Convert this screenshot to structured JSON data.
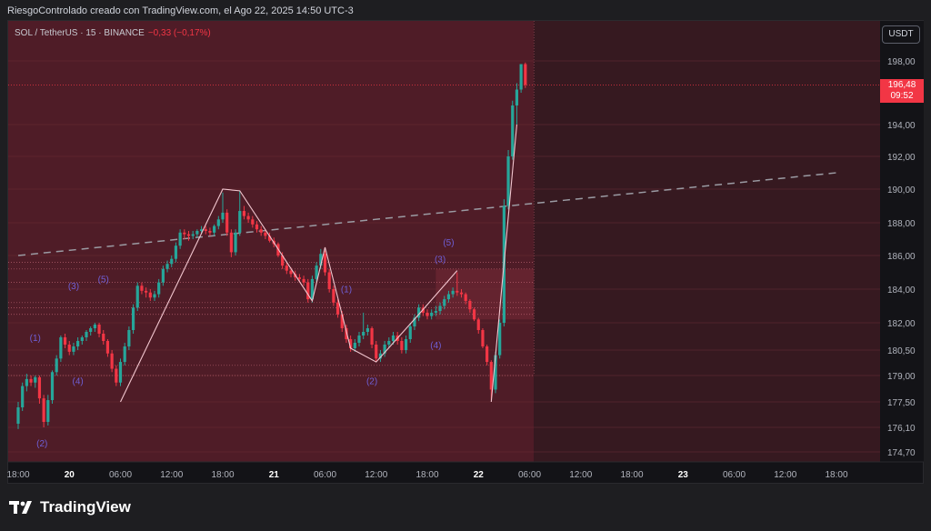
{
  "header": {
    "attribution": "RiesgoControlado creado con TradingView.com, el Ago 22, 2025 14:50 UTC-3"
  },
  "ticker": {
    "symbol_line": "SOL / TetherUS · 15 · BINANCE",
    "change": "−0,33 (−0,17%)"
  },
  "currency_button": "USDT",
  "last_price": {
    "value": "196,48",
    "countdown": "09:52"
  },
  "brand": {
    "name": "TradingView"
  },
  "colors": {
    "up": "#26a69a",
    "down": "#f23645",
    "zone": "#5a1f2a",
    "wave_line": "#f2c6cf",
    "wave_label": "#6f5fd6",
    "trend_dash": "#9b9ba3"
  },
  "chart_data": {
    "type": "candlestick",
    "interval": "15",
    "y_ticks": [
      "198,00",
      "194,00",
      "192,00",
      "190,00",
      "188,00",
      "186,00",
      "184,00",
      "182,00",
      "180,50",
      "179,00",
      "177,50",
      "176,10",
      "174,70"
    ],
    "y_tick_values": [
      198.0,
      194.0,
      192.0,
      190.0,
      188.0,
      186.0,
      184.0,
      182.0,
      180.5,
      179.0,
      177.5,
      176.1,
      174.7
    ],
    "x_ticks": [
      "18:00",
      "20",
      "06:00",
      "12:00",
      "18:00",
      "21",
      "06:00",
      "12:00",
      "18:00",
      "22",
      "06:00",
      "12:00",
      "18:00",
      "23",
      "06:00",
      "12:00",
      "18:00"
    ],
    "x_tick_hours": [
      0,
      6,
      12,
      18,
      24,
      30,
      36,
      42,
      48,
      54,
      60,
      66,
      72,
      78,
      84,
      90,
      96
    ],
    "bold_x_ticks": [
      "20",
      "21",
      "22",
      "23"
    ],
    "price_path": [
      [
        0,
        176.3
      ],
      [
        1,
        178.8
      ],
      [
        2,
        178.9
      ],
      [
        3,
        176.4
      ],
      [
        4,
        179.2
      ],
      [
        5,
        181.2
      ],
      [
        6,
        180.4
      ],
      [
        7,
        181.0
      ],
      [
        9,
        181.9
      ],
      [
        10,
        181.0
      ],
      [
        11.5,
        178.6
      ],
      [
        13,
        181.6
      ],
      [
        14,
        184.2
      ],
      [
        16,
        183.7
      ],
      [
        17,
        185.2
      ],
      [
        18,
        185.8
      ],
      [
        19,
        187.4
      ],
      [
        20,
        187.2
      ],
      [
        22,
        187.6
      ],
      [
        23,
        187.4
      ],
      [
        24,
        188.6
      ],
      [
        25,
        186.2
      ],
      [
        26,
        188.7
      ],
      [
        27,
        188.2
      ],
      [
        28,
        187.6
      ],
      [
        29,
        187.2
      ],
      [
        30,
        186.7
      ],
      [
        31,
        185.4
      ],
      [
        33,
        184.6
      ],
      [
        34,
        184.3
      ],
      [
        34.5,
        183.3
      ],
      [
        36,
        186.1
      ],
      [
        37,
        183.2
      ],
      [
        38,
        181.7
      ],
      [
        39,
        180.6
      ],
      [
        40,
        181.3
      ],
      [
        41,
        181.7
      ],
      [
        42,
        180.0
      ],
      [
        43,
        180.8
      ],
      [
        44,
        181.3
      ],
      [
        45,
        180.5
      ],
      [
        46,
        181.8
      ],
      [
        47,
        182.9
      ],
      [
        48,
        182.4
      ],
      [
        49,
        182.7
      ],
      [
        50,
        183.4
      ],
      [
        51,
        183.9
      ],
      [
        52,
        183.7
      ],
      [
        53,
        182.8
      ],
      [
        54,
        181.6
      ],
      [
        55,
        179.8
      ],
      [
        55.5,
        178.2
      ],
      [
        56,
        180.2
      ],
      [
        56.5,
        182.0
      ],
      [
        57,
        189.0
      ],
      [
        57.5,
        192.0
      ],
      [
        58,
        195.2
      ],
      [
        58.5,
        196.2
      ],
      [
        59,
        197.8
      ],
      [
        59.5,
        196.5
      ]
    ],
    "candles": [
      {
        "t": 0.0,
        "o": 176.3,
        "h": 177.5,
        "l": 176.0,
        "c": 177.2
      },
      {
        "t": 0.5,
        "o": 177.2,
        "h": 178.6,
        "l": 177.0,
        "c": 178.4
      },
      {
        "t": 1.0,
        "o": 178.4,
        "h": 179.1,
        "l": 178.1,
        "c": 178.8
      },
      {
        "t": 1.5,
        "o": 178.8,
        "h": 179.0,
        "l": 178.4,
        "c": 178.6
      },
      {
        "t": 2.0,
        "o": 178.6,
        "h": 179.0,
        "l": 178.3,
        "c": 178.9
      },
      {
        "t": 2.5,
        "o": 178.9,
        "h": 179.0,
        "l": 177.4,
        "c": 177.7
      },
      {
        "t": 3.0,
        "o": 177.7,
        "h": 177.9,
        "l": 176.1,
        "c": 176.4
      },
      {
        "t": 3.5,
        "o": 176.4,
        "h": 177.9,
        "l": 176.2,
        "c": 177.6
      },
      {
        "t": 4.0,
        "o": 177.6,
        "h": 179.3,
        "l": 177.4,
        "c": 179.2
      },
      {
        "t": 4.5,
        "o": 179.2,
        "h": 180.2,
        "l": 179.0,
        "c": 180.0
      },
      {
        "t": 5.0,
        "o": 180.0,
        "h": 181.3,
        "l": 179.8,
        "c": 181.2
      },
      {
        "t": 5.5,
        "o": 181.2,
        "h": 181.4,
        "l": 180.6,
        "c": 180.8
      },
      {
        "t": 6.0,
        "o": 180.8,
        "h": 181.0,
        "l": 180.2,
        "c": 180.4
      },
      {
        "t": 6.5,
        "o": 180.4,
        "h": 180.9,
        "l": 180.2,
        "c": 180.7
      },
      {
        "t": 7.0,
        "o": 180.7,
        "h": 181.2,
        "l": 180.5,
        "c": 181.0
      },
      {
        "t": 7.5,
        "o": 181.0,
        "h": 181.3,
        "l": 180.8,
        "c": 181.2
      },
      {
        "t": 8.0,
        "o": 181.2,
        "h": 181.6,
        "l": 181.0,
        "c": 181.5
      },
      {
        "t": 8.5,
        "o": 181.5,
        "h": 181.8,
        "l": 181.3,
        "c": 181.7
      },
      {
        "t": 9.0,
        "o": 181.7,
        "h": 182.0,
        "l": 181.5,
        "c": 181.9
      },
      {
        "t": 9.5,
        "o": 181.9,
        "h": 182.0,
        "l": 181.2,
        "c": 181.4
      },
      {
        "t": 10.0,
        "o": 181.4,
        "h": 181.6,
        "l": 180.8,
        "c": 181.0
      },
      {
        "t": 10.5,
        "o": 181.0,
        "h": 181.1,
        "l": 180.1,
        "c": 180.3
      },
      {
        "t": 11.0,
        "o": 180.3,
        "h": 180.5,
        "l": 179.2,
        "c": 179.4
      },
      {
        "t": 11.5,
        "o": 179.4,
        "h": 179.6,
        "l": 178.4,
        "c": 178.6
      },
      {
        "t": 12.0,
        "o": 178.6,
        "h": 180.0,
        "l": 178.4,
        "c": 179.8
      },
      {
        "t": 12.5,
        "o": 179.8,
        "h": 180.9,
        "l": 179.6,
        "c": 180.7
      },
      {
        "t": 13.0,
        "o": 180.7,
        "h": 181.8,
        "l": 180.5,
        "c": 181.6
      },
      {
        "t": 13.5,
        "o": 181.6,
        "h": 183.1,
        "l": 181.4,
        "c": 182.9
      },
      {
        "t": 14.0,
        "o": 182.9,
        "h": 184.4,
        "l": 182.7,
        "c": 184.2
      },
      {
        "t": 14.5,
        "o": 184.2,
        "h": 184.4,
        "l": 183.7,
        "c": 183.9
      },
      {
        "t": 15.0,
        "o": 183.9,
        "h": 184.1,
        "l": 183.5,
        "c": 183.8
      },
      {
        "t": 15.5,
        "o": 183.8,
        "h": 184.0,
        "l": 183.3,
        "c": 183.5
      },
      {
        "t": 16.0,
        "o": 183.5,
        "h": 183.9,
        "l": 183.3,
        "c": 183.7
      },
      {
        "t": 16.5,
        "o": 183.7,
        "h": 184.6,
        "l": 183.5,
        "c": 184.4
      },
      {
        "t": 17.0,
        "o": 184.4,
        "h": 185.4,
        "l": 184.2,
        "c": 185.2
      },
      {
        "t": 17.5,
        "o": 185.2,
        "h": 185.7,
        "l": 185.0,
        "c": 185.5
      },
      {
        "t": 18.0,
        "o": 185.5,
        "h": 186.0,
        "l": 185.3,
        "c": 185.8
      },
      {
        "t": 18.5,
        "o": 185.8,
        "h": 186.8,
        "l": 185.6,
        "c": 186.6
      },
      {
        "t": 19.0,
        "o": 186.6,
        "h": 187.6,
        "l": 186.4,
        "c": 187.4
      },
      {
        "t": 19.5,
        "o": 187.4,
        "h": 187.6,
        "l": 187.0,
        "c": 187.3
      },
      {
        "t": 20.0,
        "o": 187.3,
        "h": 187.5,
        "l": 186.9,
        "c": 187.2
      },
      {
        "t": 20.5,
        "o": 187.2,
        "h": 187.5,
        "l": 187.0,
        "c": 187.3
      },
      {
        "t": 21.0,
        "o": 187.3,
        "h": 187.6,
        "l": 187.1,
        "c": 187.5
      },
      {
        "t": 21.5,
        "o": 187.5,
        "h": 187.8,
        "l": 187.3,
        "c": 187.6
      },
      {
        "t": 22.0,
        "o": 187.6,
        "h": 187.8,
        "l": 187.3,
        "c": 187.5
      },
      {
        "t": 22.5,
        "o": 187.5,
        "h": 187.7,
        "l": 187.2,
        "c": 187.4
      },
      {
        "t": 23.0,
        "o": 187.4,
        "h": 187.9,
        "l": 187.2,
        "c": 187.8
      },
      {
        "t": 23.5,
        "o": 187.8,
        "h": 188.4,
        "l": 187.6,
        "c": 188.2
      },
      {
        "t": 24.0,
        "o": 188.2,
        "h": 189.8,
        "l": 188.0,
        "c": 188.6
      },
      {
        "t": 24.5,
        "o": 188.6,
        "h": 188.8,
        "l": 187.2,
        "c": 187.4
      },
      {
        "t": 25.0,
        "o": 187.4,
        "h": 187.6,
        "l": 185.9,
        "c": 186.2
      },
      {
        "t": 25.5,
        "o": 186.2,
        "h": 187.6,
        "l": 186.0,
        "c": 187.4
      },
      {
        "t": 26.0,
        "o": 187.4,
        "h": 189.9,
        "l": 187.2,
        "c": 188.7
      },
      {
        "t": 26.5,
        "o": 188.7,
        "h": 189.0,
        "l": 188.2,
        "c": 188.4
      },
      {
        "t": 27.0,
        "o": 188.4,
        "h": 188.6,
        "l": 188.0,
        "c": 188.2
      },
      {
        "t": 27.5,
        "o": 188.2,
        "h": 188.4,
        "l": 187.7,
        "c": 187.9
      },
      {
        "t": 28.0,
        "o": 187.9,
        "h": 188.1,
        "l": 187.4,
        "c": 187.6
      },
      {
        "t": 28.5,
        "o": 187.6,
        "h": 187.8,
        "l": 187.2,
        "c": 187.4
      },
      {
        "t": 29.0,
        "o": 187.4,
        "h": 187.6,
        "l": 187.0,
        "c": 187.2
      },
      {
        "t": 29.5,
        "o": 187.2,
        "h": 187.4,
        "l": 186.8,
        "c": 186.9
      },
      {
        "t": 30.0,
        "o": 186.9,
        "h": 187.1,
        "l": 186.5,
        "c": 186.7
      },
      {
        "t": 30.5,
        "o": 186.7,
        "h": 186.8,
        "l": 185.9,
        "c": 186.0
      },
      {
        "t": 31.0,
        "o": 186.0,
        "h": 186.2,
        "l": 185.2,
        "c": 185.4
      },
      {
        "t": 31.5,
        "o": 185.4,
        "h": 185.6,
        "l": 184.9,
        "c": 185.1
      },
      {
        "t": 32.0,
        "o": 185.1,
        "h": 185.3,
        "l": 184.7,
        "c": 184.9
      },
      {
        "t": 32.5,
        "o": 184.9,
        "h": 185.1,
        "l": 184.5,
        "c": 184.7
      },
      {
        "t": 33.0,
        "o": 184.7,
        "h": 184.9,
        "l": 184.4,
        "c": 184.6
      },
      {
        "t": 33.5,
        "o": 184.6,
        "h": 184.8,
        "l": 184.2,
        "c": 184.4
      },
      {
        "t": 34.0,
        "o": 184.4,
        "h": 184.6,
        "l": 183.2,
        "c": 183.4
      },
      {
        "t": 34.5,
        "o": 183.4,
        "h": 184.8,
        "l": 183.2,
        "c": 184.6
      },
      {
        "t": 35.0,
        "o": 184.6,
        "h": 185.6,
        "l": 184.4,
        "c": 185.4
      },
      {
        "t": 35.5,
        "o": 185.4,
        "h": 186.4,
        "l": 185.2,
        "c": 186.1
      },
      {
        "t": 36.0,
        "o": 186.1,
        "h": 186.3,
        "l": 184.8,
        "c": 185.0
      },
      {
        "t": 36.5,
        "o": 185.0,
        "h": 185.2,
        "l": 183.8,
        "c": 184.0
      },
      {
        "t": 37.0,
        "o": 184.0,
        "h": 184.2,
        "l": 183.0,
        "c": 183.2
      },
      {
        "t": 37.5,
        "o": 183.2,
        "h": 183.4,
        "l": 182.3,
        "c": 182.5
      },
      {
        "t": 38.0,
        "o": 182.5,
        "h": 182.7,
        "l": 181.5,
        "c": 181.7
      },
      {
        "t": 38.5,
        "o": 181.7,
        "h": 181.9,
        "l": 180.9,
        "c": 181.1
      },
      {
        "t": 39.0,
        "o": 181.1,
        "h": 181.3,
        "l": 180.4,
        "c": 180.6
      },
      {
        "t": 39.5,
        "o": 180.6,
        "h": 181.1,
        "l": 180.4,
        "c": 180.9
      },
      {
        "t": 40.0,
        "o": 180.9,
        "h": 181.5,
        "l": 180.7,
        "c": 181.3
      },
      {
        "t": 40.5,
        "o": 181.3,
        "h": 182.6,
        "l": 181.1,
        "c": 181.5
      },
      {
        "t": 41.0,
        "o": 181.5,
        "h": 181.9,
        "l": 181.3,
        "c": 181.7
      },
      {
        "t": 41.5,
        "o": 181.7,
        "h": 181.8,
        "l": 180.6,
        "c": 180.8
      },
      {
        "t": 42.0,
        "o": 180.8,
        "h": 181.0,
        "l": 179.8,
        "c": 180.0
      },
      {
        "t": 42.5,
        "o": 180.0,
        "h": 180.5,
        "l": 179.8,
        "c": 180.3
      },
      {
        "t": 43.0,
        "o": 180.3,
        "h": 181.0,
        "l": 180.1,
        "c": 180.8
      },
      {
        "t": 43.5,
        "o": 180.8,
        "h": 181.2,
        "l": 180.6,
        "c": 181.0
      },
      {
        "t": 44.0,
        "o": 181.0,
        "h": 181.5,
        "l": 180.8,
        "c": 181.3
      },
      {
        "t": 44.5,
        "o": 181.3,
        "h": 181.5,
        "l": 180.8,
        "c": 181.0
      },
      {
        "t": 45.0,
        "o": 181.0,
        "h": 181.2,
        "l": 180.3,
        "c": 180.5
      },
      {
        "t": 45.5,
        "o": 180.5,
        "h": 181.3,
        "l": 180.3,
        "c": 181.1
      },
      {
        "t": 46.0,
        "o": 181.1,
        "h": 182.0,
        "l": 180.9,
        "c": 181.8
      },
      {
        "t": 46.5,
        "o": 181.8,
        "h": 182.5,
        "l": 181.6,
        "c": 182.3
      },
      {
        "t": 47.0,
        "o": 182.3,
        "h": 183.1,
        "l": 182.1,
        "c": 182.9
      },
      {
        "t": 47.5,
        "o": 182.9,
        "h": 183.1,
        "l": 182.4,
        "c": 182.6
      },
      {
        "t": 48.0,
        "o": 182.6,
        "h": 182.8,
        "l": 182.2,
        "c": 182.4
      },
      {
        "t": 48.5,
        "o": 182.4,
        "h": 182.8,
        "l": 182.2,
        "c": 182.6
      },
      {
        "t": 49.0,
        "o": 182.6,
        "h": 183.0,
        "l": 182.4,
        "c": 182.7
      },
      {
        "t": 49.5,
        "o": 182.7,
        "h": 183.2,
        "l": 182.5,
        "c": 183.0
      },
      {
        "t": 50.0,
        "o": 183.0,
        "h": 183.6,
        "l": 182.8,
        "c": 183.4
      },
      {
        "t": 50.5,
        "o": 183.4,
        "h": 183.9,
        "l": 183.2,
        "c": 183.7
      },
      {
        "t": 51.0,
        "o": 183.7,
        "h": 184.1,
        "l": 183.5,
        "c": 183.9
      },
      {
        "t": 51.5,
        "o": 183.9,
        "h": 185.0,
        "l": 183.6,
        "c": 183.8
      },
      {
        "t": 52.0,
        "o": 183.8,
        "h": 184.0,
        "l": 183.5,
        "c": 183.7
      },
      {
        "t": 52.5,
        "o": 183.7,
        "h": 183.8,
        "l": 183.1,
        "c": 183.3
      },
      {
        "t": 53.0,
        "o": 183.3,
        "h": 183.4,
        "l": 182.6,
        "c": 182.8
      },
      {
        "t": 53.5,
        "o": 182.8,
        "h": 182.9,
        "l": 182.1,
        "c": 182.2
      },
      {
        "t": 54.0,
        "o": 182.2,
        "h": 182.3,
        "l": 181.4,
        "c": 181.6
      },
      {
        "t": 54.5,
        "o": 181.6,
        "h": 181.7,
        "l": 180.6,
        "c": 180.7
      },
      {
        "t": 55.0,
        "o": 180.7,
        "h": 180.8,
        "l": 179.6,
        "c": 179.8
      },
      {
        "t": 55.5,
        "o": 179.8,
        "h": 179.9,
        "l": 177.6,
        "c": 178.2
      },
      {
        "t": 56.0,
        "o": 178.2,
        "h": 180.4,
        "l": 178.0,
        "c": 180.2
      },
      {
        "t": 56.5,
        "o": 180.2,
        "h": 182.2,
        "l": 180.0,
        "c": 182.0
      },
      {
        "t": 57.0,
        "o": 182.0,
        "h": 189.4,
        "l": 181.8,
        "c": 189.0
      },
      {
        "t": 57.5,
        "o": 189.0,
        "h": 192.4,
        "l": 188.8,
        "c": 192.0
      },
      {
        "t": 58.0,
        "o": 192.0,
        "h": 195.5,
        "l": 191.8,
        "c": 195.2
      },
      {
        "t": 58.5,
        "o": 195.2,
        "h": 196.6,
        "l": 194.0,
        "c": 196.2
      },
      {
        "t": 59.0,
        "o": 196.2,
        "h": 198.2,
        "l": 196.0,
        "c": 197.8
      },
      {
        "t": 59.5,
        "o": 197.8,
        "h": 198.1,
        "l": 196.3,
        "c": 196.5
      }
    ],
    "wave_lines": [
      [
        [
          12,
          177.5
        ],
        [
          24,
          190.0
        ],
        [
          26,
          189.9
        ],
        [
          34.5,
          183.3
        ],
        [
          36,
          186.5
        ],
        [
          39,
          180.6
        ],
        [
          42,
          179.8
        ],
        [
          47,
          182.5
        ],
        [
          51.5,
          185.1
        ]
      ],
      [
        [
          55.5,
          177.5
        ],
        [
          58.5,
          194.0
        ]
      ]
    ],
    "wave_labels": [
      {
        "text": "(1)",
        "t": 2.0,
        "y": 181.0
      },
      {
        "text": "(2)",
        "t": 2.8,
        "y": 175.0
      },
      {
        "text": "(3)",
        "t": 6.5,
        "y": 184.0
      },
      {
        "text": "(4)",
        "t": 7.0,
        "y": 178.5
      },
      {
        "text": "(5)",
        "t": 10.0,
        "y": 184.4
      },
      {
        "text": "(1)",
        "t": 38.5,
        "y": 183.8
      },
      {
        "text": "(2)",
        "t": 41.5,
        "y": 178.5
      },
      {
        "text": "(3)",
        "t": 49.5,
        "y": 185.6
      },
      {
        "text": "(4)",
        "t": 49.0,
        "y": 180.6
      },
      {
        "text": "(5)",
        "t": 50.5,
        "y": 186.6
      }
    ],
    "trend_line": [
      [
        0,
        186.0
      ],
      [
        96,
        191.0
      ]
    ],
    "zone_levels": [
      185.6,
      185.2,
      184.4,
      183.2,
      182.9,
      182.5,
      179.6,
      179.0
    ],
    "zone_end_t": 60.5,
    "highlight_zone": {
      "from": 182.2,
      "to": 185.2,
      "start_t": 49.0
    },
    "last_price_value": 196.48,
    "last_close": 196.5
  }
}
